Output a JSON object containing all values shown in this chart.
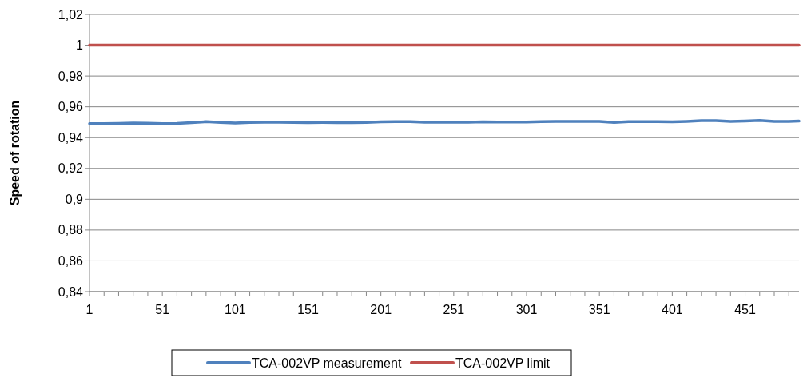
{
  "chart_data": {
    "type": "line",
    "ylabel": "Speed of rotation",
    "xlim": [
      1,
      488
    ],
    "xticks": [
      1,
      {
        "value": 11,
        "label": null
      },
      {
        "value": 21,
        "label": null
      },
      {
        "value": 31,
        "label": null
      },
      {
        "value": 41,
        "label": null
      },
      51,
      {
        "value": 61,
        "label": null
      },
      {
        "value": 71,
        "label": null
      },
      {
        "value": 81,
        "label": null
      },
      {
        "value": 91,
        "label": null
      },
      101,
      {
        "value": 111,
        "label": null
      },
      {
        "value": 121,
        "label": null
      },
      {
        "value": 131,
        "label": null
      },
      {
        "value": 141,
        "label": null
      },
      151,
      {
        "value": 161,
        "label": null
      },
      {
        "value": 171,
        "label": null
      },
      {
        "value": 181,
        "label": null
      },
      {
        "value": 191,
        "label": null
      },
      201,
      {
        "value": 211,
        "label": null
      },
      {
        "value": 221,
        "label": null
      },
      {
        "value": 231,
        "label": null
      },
      {
        "value": 241,
        "label": null
      },
      251,
      {
        "value": 261,
        "label": null
      },
      {
        "value": 271,
        "label": null
      },
      {
        "value": 281,
        "label": null
      },
      {
        "value": 291,
        "label": null
      },
      301,
      {
        "value": 311,
        "label": null
      },
      {
        "value": 321,
        "label": null
      },
      {
        "value": 331,
        "label": null
      },
      {
        "value": 341,
        "label": null
      },
      351,
      {
        "value": 361,
        "label": null
      },
      {
        "value": 371,
        "label": null
      },
      {
        "value": 381,
        "label": null
      },
      {
        "value": 391,
        "label": null
      },
      401,
      {
        "value": 411,
        "label": null
      },
      {
        "value": 421,
        "label": null
      },
      {
        "value": 431,
        "label": null
      },
      {
        "value": 441,
        "label": null
      },
      451,
      {
        "value": 461,
        "label": null
      },
      {
        "value": 471,
        "label": null
      },
      {
        "value": 481,
        "label": null
      }
    ],
    "ylim": [
      0.84,
      1.02
    ],
    "yticks": [
      {
        "value": 0.84,
        "label": "0,84"
      },
      {
        "value": 0.86,
        "label": "0,86"
      },
      {
        "value": 0.88,
        "label": "0,88"
      },
      {
        "value": 0.9,
        "label": "0,9"
      },
      {
        "value": 0.92,
        "label": "0,92"
      },
      {
        "value": 0.94,
        "label": "0,94"
      },
      {
        "value": 0.96,
        "label": "0,96"
      },
      {
        "value": 0.98,
        "label": "0,98"
      },
      {
        "value": 1,
        "label": "1"
      },
      {
        "value": 1.02,
        "label": "1,02"
      }
    ],
    "grid": "y",
    "legend": "bottom",
    "marker": "none",
    "line_style": "solid",
    "series": [
      {
        "name": "TCA-002VP measurement",
        "color": "#4f81bd",
        "x": [
          1,
          11,
          21,
          31,
          41,
          51,
          61,
          71,
          81,
          91,
          101,
          111,
          121,
          131,
          141,
          151,
          161,
          171,
          181,
          191,
          201,
          211,
          221,
          231,
          241,
          251,
          261,
          271,
          281,
          291,
          301,
          311,
          321,
          331,
          341,
          351,
          361,
          371,
          381,
          391,
          401,
          411,
          421,
          431,
          441,
          451,
          461,
          471,
          481,
          488
        ],
        "values": [
          0.949,
          0.949,
          0.9492,
          0.9495,
          0.9493,
          0.949,
          0.9492,
          0.9497,
          0.9503,
          0.9498,
          0.9495,
          0.9498,
          0.95,
          0.95,
          0.9498,
          0.9497,
          0.9498,
          0.9497,
          0.9497,
          0.9499,
          0.9502,
          0.9503,
          0.9503,
          0.95,
          0.95,
          0.95,
          0.95,
          0.9502,
          0.9501,
          0.9501,
          0.9501,
          0.9503,
          0.9505,
          0.9505,
          0.9505,
          0.9505,
          0.9498,
          0.9503,
          0.9503,
          0.9504,
          0.9502,
          0.9505,
          0.951,
          0.951,
          0.9505,
          0.9508,
          0.9512,
          0.9505,
          0.9505,
          0.9507
        ]
      },
      {
        "name": "TCA-002VP limit",
        "color": "#c0504d",
        "x": [
          1,
          488
        ],
        "values": [
          1,
          1
        ]
      }
    ]
  }
}
